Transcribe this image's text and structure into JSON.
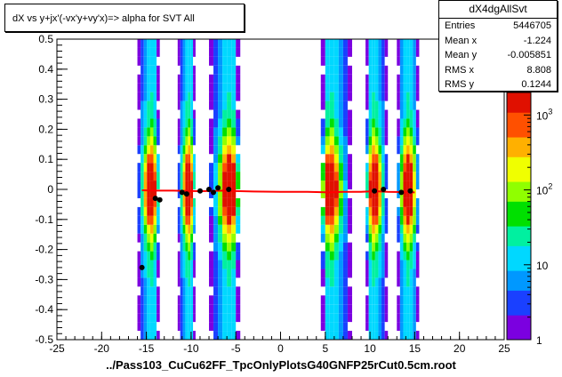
{
  "title": "dX vs  y+jx'(-vx'y+vy'x)=> alpha for SVT All",
  "stats": {
    "name": "dX4dgAllSvt",
    "rows": [
      {
        "label": "Entries",
        "value": "5446705"
      },
      {
        "label": "Mean x",
        "value": "-1.224"
      },
      {
        "label": "Mean y",
        "value": "-0.005851"
      },
      {
        "label": "RMS x",
        "value": "8.808"
      },
      {
        "label": "RMS y",
        "value": "0.1244"
      }
    ]
  },
  "xlabel": "../Pass103_CuCu62FF_TpcOnlyPlotsG40GNFP25rCut0.5cm.root",
  "colors": {
    "profile_line": "#ff0000",
    "points": "#000000",
    "palette": [
      "#7b00e0",
      "#1a40ff",
      "#0098ff",
      "#00d8ff",
      "#00f0a0",
      "#00e000",
      "#90ff00",
      "#f0ff00",
      "#ffb000",
      "#ff5000",
      "#e01000"
    ]
  },
  "chart_data": {
    "type": "heatmap",
    "xlim": [
      -25,
      25
    ],
    "ylim": [
      -0.5,
      0.5
    ],
    "zlim": [
      1,
      2000
    ],
    "z_scale": "log",
    "x_ticks": [
      "-25",
      "-20",
      "-15",
      "-10",
      "-5",
      "0",
      "5",
      "10",
      "15",
      "20",
      "25"
    ],
    "y_ticks": [
      "-0.5",
      "-0.4",
      "-0.3",
      "-0.2",
      "-0.1",
      "0",
      "0.1",
      "0.2",
      "0.3",
      "0.4",
      "0.5"
    ],
    "z_ticks": [
      "1",
      "10",
      "10^2",
      "10^3"
    ],
    "bands": [
      {
        "x_min": -16.0,
        "x_max": -13.5,
        "core_x": -14.5
      },
      {
        "x_min": -11.5,
        "x_max": -9.5,
        "core_x": -10.3
      },
      {
        "x_min": -8.0,
        "x_max": -4.5,
        "core_x": -5.7
      },
      {
        "x_min": 4.5,
        "x_max": 8.0,
        "core_x": 5.6
      },
      {
        "x_min": 9.5,
        "x_max": 12.0,
        "core_x": 10.5
      },
      {
        "x_min": 13.0,
        "x_max": 15.5,
        "core_x": 14.3
      }
    ],
    "profile": {
      "x": [
        -15.5,
        -14,
        -12,
        -10.5,
        -9,
        -7.5,
        -6.5,
        -5.5,
        -3,
        0,
        3,
        5.5,
        7,
        9,
        10.5,
        12,
        13.5,
        15
      ],
      "y": [
        -0.003,
        -0.004,
        -0.004,
        -0.005,
        -0.006,
        -0.005,
        -0.004,
        -0.005,
        -0.007,
        -0.008,
        -0.008,
        -0.01,
        -0.008,
        -0.008,
        -0.006,
        -0.008,
        -0.009,
        -0.01
      ]
    },
    "points": {
      "x": [
        -15.5,
        -14.0,
        -13.5,
        -11.0,
        -10.5,
        -9.0,
        -8.0,
        -7.5,
        -7.0,
        -5.8,
        10.5,
        11.5,
        13.5,
        14.5
      ],
      "y": [
        -0.26,
        -0.03,
        -0.035,
        -0.01,
        -0.015,
        -0.005,
        0.0,
        -0.01,
        0.005,
        0.0,
        -0.005,
        0.0,
        -0.01,
        -0.005
      ]
    }
  }
}
